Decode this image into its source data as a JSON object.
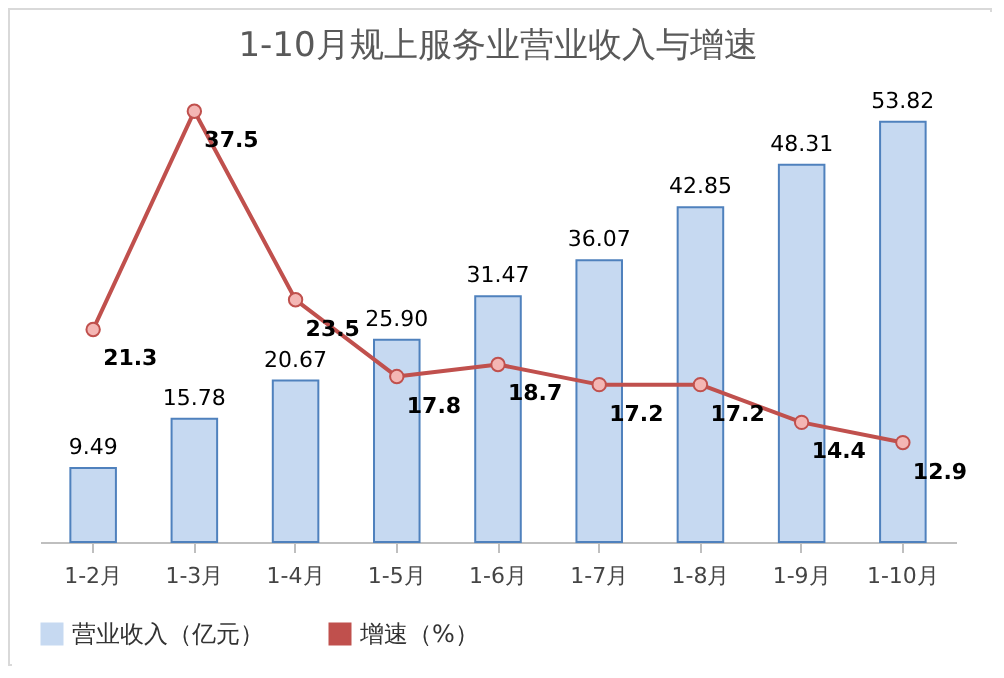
{
  "chart_data": {
    "type": "bar",
    "title": "1-10月规上服务业营业收入与增速",
    "categories": [
      "1-2月",
      "1-3月",
      "1-4月",
      "1-5月",
      "1-6月",
      "1-7月",
      "1-8月",
      "1-9月",
      "1-10月"
    ],
    "series": [
      {
        "name": "营业收入（亿元）",
        "color": "#c6d9f1",
        "values": [
          9.49,
          15.78,
          20.67,
          25.9,
          31.47,
          36.07,
          42.85,
          48.31,
          53.82
        ],
        "value_labels": [
          "9.49",
          "15.78",
          "20.67",
          "25.90",
          "31.47",
          "36.07",
          "42.85",
          "48.31",
          "53.82"
        ]
      },
      {
        "name": "增速（%）",
        "type": "line",
        "axis": "y2",
        "color": "#c0504d",
        "values": [
          21.3,
          37.5,
          23.5,
          17.8,
          18.7,
          17.2,
          17.2,
          14.4,
          12.9
        ],
        "value_labels": [
          "21.3",
          "37.5",
          "23.5",
          "17.8",
          "18.7",
          "17.2",
          "17.2",
          "14.4",
          "12.9"
        ]
      }
    ],
    "marker": "circle",
    "legend": "bottom",
    "grid": false
  }
}
